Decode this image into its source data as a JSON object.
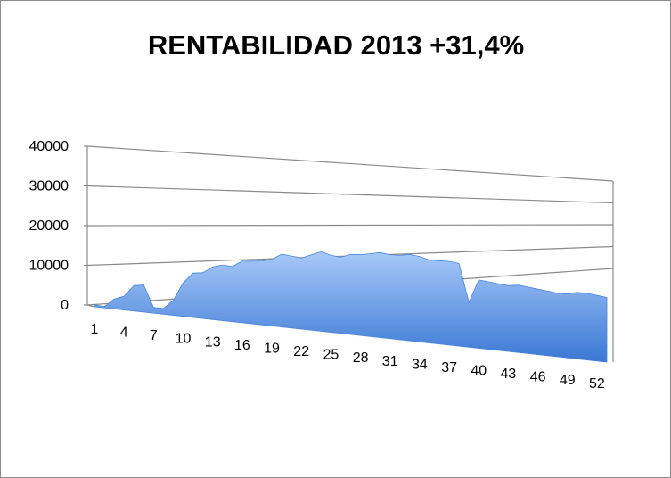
{
  "chart_data": {
    "type": "area",
    "title": "RENTABILIDAD 2013 +31,4%",
    "xlabel": "",
    "ylabel": "",
    "ylim": [
      0,
      40000
    ],
    "yticks": [
      "0",
      "10000",
      "20000",
      "30000",
      "40000"
    ],
    "xtick_labels": [
      "1",
      "4",
      "7",
      "10",
      "13",
      "16",
      "19",
      "22",
      "25",
      "28",
      "31",
      "34",
      "37",
      "40",
      "43",
      "46",
      "49",
      "52"
    ],
    "grid": true,
    "legend": "none",
    "style": "3d",
    "color_light": "#a8c8f8",
    "color_dark": "#3a78d4",
    "x": [
      1,
      2,
      3,
      4,
      5,
      6,
      7,
      8,
      9,
      10,
      11,
      12,
      13,
      14,
      15,
      16,
      17,
      18,
      19,
      20,
      21,
      22,
      23,
      24,
      25,
      26,
      27,
      28,
      29,
      30,
      31,
      32,
      33,
      34,
      35,
      36,
      37,
      38,
      39,
      40,
      41,
      42,
      43,
      44,
      45,
      46,
      47,
      48,
      49,
      50,
      51,
      52,
      53
    ],
    "values": [
      500,
      300,
      2500,
      3500,
      6500,
      7000,
      1500,
      1500,
      4000,
      9000,
      12000,
      12500,
      14500,
      15500,
      15500,
      17500,
      18000,
      18500,
      19500,
      21500,
      21500,
      21500,
      23000,
      24500,
      24000,
      24000,
      25500,
      26000,
      27000,
      28000,
      28000,
      28500,
      29500,
      29500,
      29000,
      29500,
      30000,
      30000,
      16500,
      25500,
      25500,
      25500,
      25500,
      26500,
      26500,
      26500,
      26500,
      26500,
      27000,
      28500,
      29000,
      29000,
      29000
    ]
  }
}
